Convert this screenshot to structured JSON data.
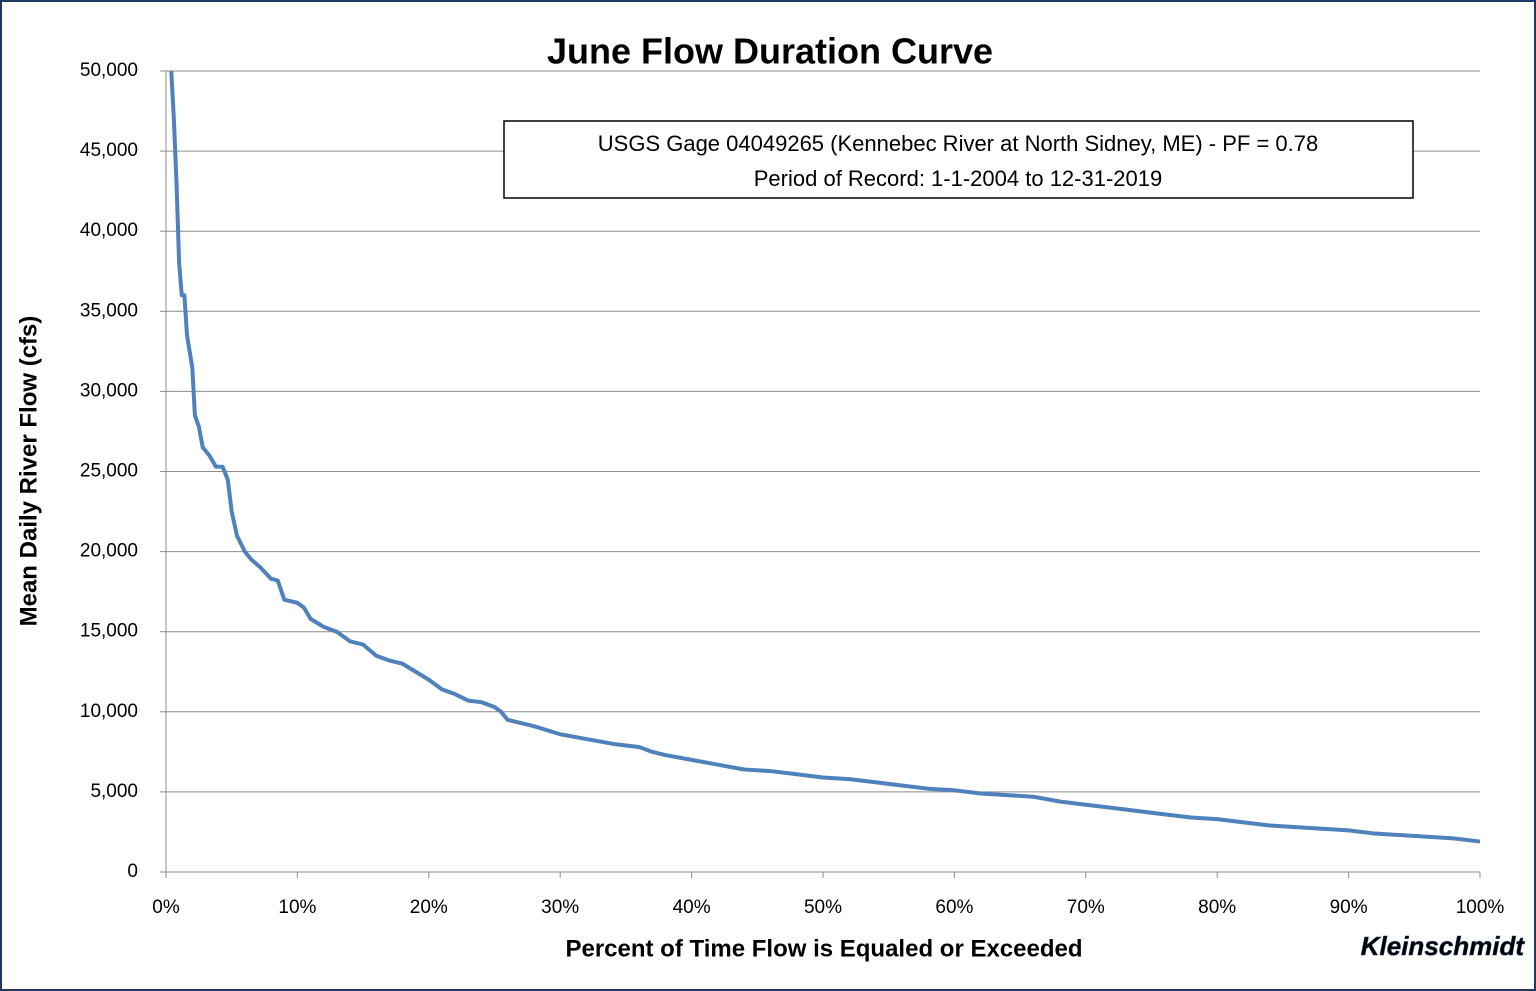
{
  "chart_data": {
    "type": "line",
    "title": "June Flow Duration Curve",
    "xlabel": "Percent of Time Flow is  Equaled or Exceeded",
    "ylabel": "Mean Daily River Flow (cfs)",
    "annotation": [
      "USGS Gage 04049265 (Kennebec River at North Sidney, ME) - PF = 0.78",
      "Period of Record: 1-1-2004 to 12-31-2019"
    ],
    "logo": "Kleinschmidt",
    "color": "#4f81bd",
    "grid": true,
    "xlim": [
      0,
      100
    ],
    "ylim": [
      0,
      50000
    ],
    "xticks": [
      {
        "value": 0,
        "label": "0%"
      },
      {
        "value": 10,
        "label": "10%"
      },
      {
        "value": 20,
        "label": "20%"
      },
      {
        "value": 30,
        "label": "30%"
      },
      {
        "value": 40,
        "label": "40%"
      },
      {
        "value": 50,
        "label": "50%"
      },
      {
        "value": 60,
        "label": "60%"
      },
      {
        "value": 70,
        "label": "70%"
      },
      {
        "value": 80,
        "label": "80%"
      },
      {
        "value": 90,
        "label": "90%"
      },
      {
        "value": 100,
        "label": "100%"
      }
    ],
    "yticks": [
      0,
      {
        "value": 5000,
        "label": "5,000"
      },
      {
        "value": 10000,
        "label": "10,000"
      },
      {
        "value": 15000,
        "label": "15,000"
      },
      {
        "value": 20000,
        "label": "20,000"
      },
      {
        "value": 25000,
        "label": "25,000"
      },
      {
        "value": 30000,
        "label": "30,000"
      },
      {
        "value": 35000,
        "label": "35,000"
      },
      {
        "value": 40000,
        "label": "40,000"
      },
      {
        "value": 45000,
        "label": "45,000"
      },
      {
        "value": 50000,
        "label": "50,000"
      }
    ],
    "x": [
      0.4,
      0.6,
      0.8,
      1.0,
      1.2,
      1.4,
      1.6,
      2.0,
      2.2,
      2.5,
      2.8,
      3.3,
      3.8,
      4.3,
      4.7,
      5.0,
      5.4,
      6.0,
      6.5,
      7.2,
      8.0,
      8.5,
      9.0,
      10,
      10.5,
      11,
      12,
      13,
      14,
      15,
      16,
      17,
      18,
      19,
      20,
      21,
      22,
      23,
      24,
      25,
      25.5,
      26,
      28,
      30,
      32,
      34,
      36,
      37,
      38,
      40,
      42,
      44,
      46,
      48,
      50,
      52,
      54,
      56,
      58,
      60,
      62,
      64,
      66,
      68,
      70,
      72,
      74,
      76,
      78,
      80,
      82,
      84,
      86,
      88,
      90,
      92,
      94,
      96,
      98,
      100
    ],
    "values": [
      50000,
      47000,
      43000,
      38000,
      36000,
      36000,
      33500,
      31500,
      28500,
      27800,
      26500,
      26000,
      25300,
      25300,
      24500,
      22500,
      21000,
      20000,
      19500,
      19000,
      18300,
      18200,
      17000,
      16800,
      16500,
      15800,
      15300,
      15000,
      14400,
      14200,
      13500,
      13200,
      13000,
      12500,
      12000,
      11400,
      11100,
      10700,
      10600,
      10300,
      10000,
      9500,
      9100,
      8600,
      8300,
      8000,
      7800,
      7500,
      7300,
      7000,
      6700,
      6400,
      6300,
      6100,
      5900,
      5800,
      5600,
      5400,
      5200,
      5100,
      4900,
      4800,
      4700,
      4400,
      4200,
      4000,
      3800,
      3600,
      3400,
      3300,
      3100,
      2900,
      2800,
      2700,
      2600,
      2400,
      2300,
      2200,
      2100,
      1900
    ]
  }
}
